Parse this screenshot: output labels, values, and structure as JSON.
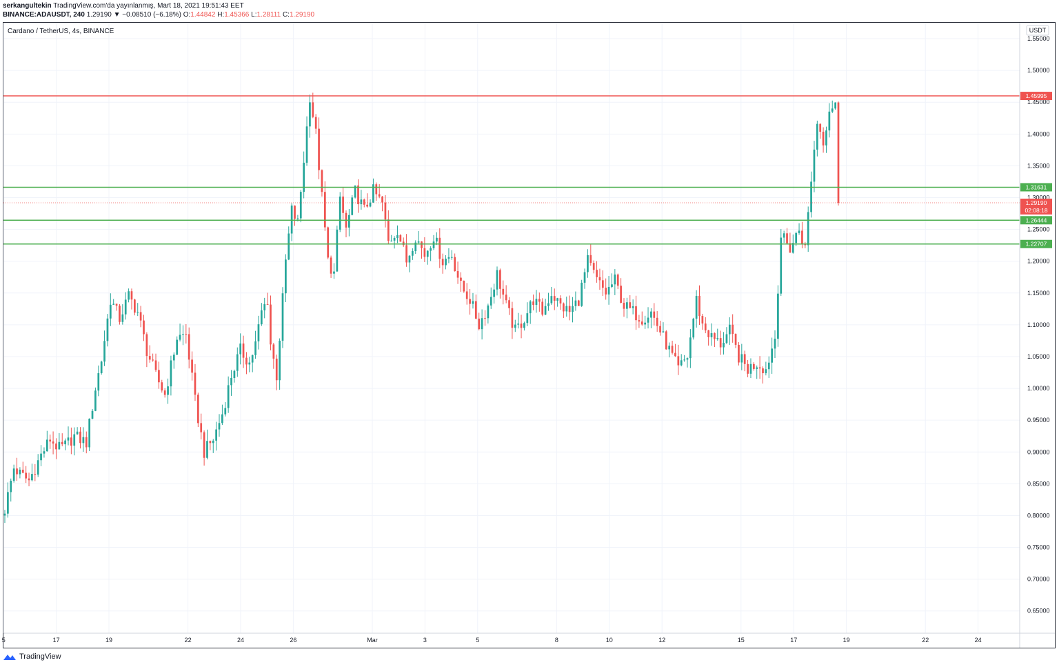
{
  "header": {
    "line1_user": "serkangultekin",
    "line1_rest": "TradingView.com'da yayınlanmış, Mart 18, 2021 19:51:43 EET",
    "symbol": "BINANCE:ADAUSDT, 240",
    "last": "1.29190",
    "change": "▼ −0.08510 (−6.18%)",
    "o_label": "O:",
    "o_val": "1.44842",
    "h_label": "H:",
    "h_val": "1.45366",
    "l_label": "L:",
    "l_val": "1.28111",
    "c_label": "C:",
    "c_val": "1.29190"
  },
  "chart_title": "Cardano / TetherUS, 4s, BINANCE",
  "currency_badge": "USDT",
  "footer": {
    "brand": "TradingView"
  },
  "colors": {
    "up": "#26a69a",
    "down": "#ef5350",
    "resistance": "#ef5350",
    "support": "#4caf50",
    "grid": "#f0f3fa"
  },
  "chart_data": {
    "type": "candlestick",
    "title": "Cardano / TetherUS, 4s, BINANCE",
    "y_ticks": [
      "1.55000",
      "1.50000",
      "1.45000",
      "1.40000",
      "1.35000",
      "1.30000",
      "1.25000",
      "1.20000",
      "1.15000",
      "1.10000",
      "1.05000",
      "1.00000",
      "0.95000",
      "0.90000",
      "0.85000",
      "0.80000",
      "0.75000",
      "0.70000",
      "0.65000"
    ],
    "ylim": [
      0.615,
      1.575
    ],
    "x_ticks": [
      {
        "label": "5",
        "day": -10
      },
      {
        "label": "17",
        "day": -8
      },
      {
        "label": "19",
        "day": -6
      },
      {
        "label": "22",
        "day": -3
      },
      {
        "label": "24",
        "day": -1
      },
      {
        "label": "26",
        "day": 1
      },
      {
        "label": "Mar",
        "day": 4
      },
      {
        "label": "3",
        "day": 6
      },
      {
        "label": "5",
        "day": 8
      },
      {
        "label": "8",
        "day": 11
      },
      {
        "label": "10",
        "day": 13
      },
      {
        "label": "12",
        "day": 15
      },
      {
        "label": "15",
        "day": 18
      },
      {
        "label": "17",
        "day": 20
      },
      {
        "label": "19",
        "day": 22
      },
      {
        "label": "22",
        "day": 25
      },
      {
        "label": "24",
        "day": 27
      }
    ],
    "levels": [
      {
        "value": 1.45995,
        "label": "1.45995",
        "kind": "resistance"
      },
      {
        "value": 1.31631,
        "label": "1.31631",
        "kind": "support"
      },
      {
        "value": 1.26444,
        "label": "1.26444",
        "kind": "support"
      },
      {
        "value": 1.22707,
        "label": "1.22707",
        "kind": "support"
      }
    ],
    "last_price": {
      "value": 1.2919,
      "label": "1.29190",
      "countdown": "02:08:18"
    },
    "anchors": [
      [
        0,
        0.81
      ],
      [
        3,
        0.875
      ],
      [
        5,
        0.865
      ],
      [
        8,
        0.855
      ],
      [
        10,
        0.875
      ],
      [
        12,
        0.895
      ],
      [
        15,
        0.92
      ],
      [
        18,
        0.905
      ],
      [
        20,
        0.91
      ],
      [
        23,
        0.925
      ],
      [
        27,
        0.915
      ],
      [
        30,
        1.0
      ],
      [
        32,
        1.045
      ],
      [
        35,
        1.14
      ],
      [
        38,
        1.11
      ],
      [
        41,
        1.145
      ],
      [
        44,
        1.12
      ],
      [
        47,
        1.06
      ],
      [
        50,
        1.02
      ],
      [
        53,
        0.99
      ],
      [
        57,
        1.08
      ],
      [
        60,
        1.085
      ],
      [
        63,
        0.98
      ],
      [
        66,
        0.9
      ],
      [
        69,
        0.92
      ],
      [
        72,
        0.96
      ],
      [
        75,
        1.02
      ],
      [
        78,
        1.06
      ],
      [
        81,
        1.04
      ],
      [
        83,
        1.07
      ],
      [
        85,
        1.12
      ],
      [
        87,
        1.14
      ],
      [
        88,
        1.07
      ],
      [
        90,
        1.02
      ],
      [
        93,
        1.2
      ],
      [
        95,
        1.28
      ],
      [
        97,
        1.26
      ],
      [
        99,
        1.36
      ],
      [
        101,
        1.46
      ],
      [
        103,
        1.4
      ],
      [
        105,
        1.3
      ],
      [
        107,
        1.2
      ],
      [
        109,
        1.18
      ],
      [
        111,
        1.3
      ],
      [
        113,
        1.25
      ],
      [
        116,
        1.31
      ],
      [
        119,
        1.28
      ],
      [
        122,
        1.31
      ],
      [
        125,
        1.29
      ],
      [
        127,
        1.23
      ],
      [
        130,
        1.25
      ],
      [
        133,
        1.2
      ],
      [
        136,
        1.24
      ],
      [
        139,
        1.21
      ],
      [
        142,
        1.24
      ],
      [
        145,
        1.2
      ],
      [
        148,
        1.21
      ],
      [
        151,
        1.16
      ],
      [
        154,
        1.14
      ],
      [
        157,
        1.1
      ],
      [
        160,
        1.13
      ],
      [
        163,
        1.18
      ],
      [
        166,
        1.13
      ],
      [
        169,
        1.09
      ],
      [
        172,
        1.11
      ],
      [
        175,
        1.14
      ],
      [
        178,
        1.12
      ],
      [
        181,
        1.15
      ],
      [
        184,
        1.13
      ],
      [
        187,
        1.12
      ],
      [
        190,
        1.14
      ],
      [
        193,
        1.2
      ],
      [
        196,
        1.17
      ],
      [
        199,
        1.15
      ],
      [
        202,
        1.17
      ],
      [
        205,
        1.13
      ],
      [
        208,
        1.12
      ],
      [
        211,
        1.11
      ],
      [
        214,
        1.12
      ],
      [
        217,
        1.09
      ],
      [
        220,
        1.06
      ],
      [
        223,
        1.03
      ],
      [
        226,
        1.05
      ],
      [
        229,
        1.14
      ],
      [
        231,
        1.1
      ],
      [
        234,
        1.08
      ],
      [
        237,
        1.07
      ],
      [
        240,
        1.09
      ],
      [
        243,
        1.05
      ],
      [
        246,
        1.03
      ],
      [
        249,
        1.04
      ],
      [
        252,
        1.03
      ],
      [
        255,
        1.08
      ],
      [
        257,
        1.24
      ],
      [
        260,
        1.22
      ],
      [
        263,
        1.25
      ],
      [
        265,
        1.22
      ],
      [
        267,
        1.33
      ],
      [
        269,
        1.42
      ],
      [
        271,
        1.39
      ],
      [
        273,
        1.44
      ],
      [
        275,
        1.45
      ],
      [
        276,
        1.2919
      ]
    ]
  }
}
